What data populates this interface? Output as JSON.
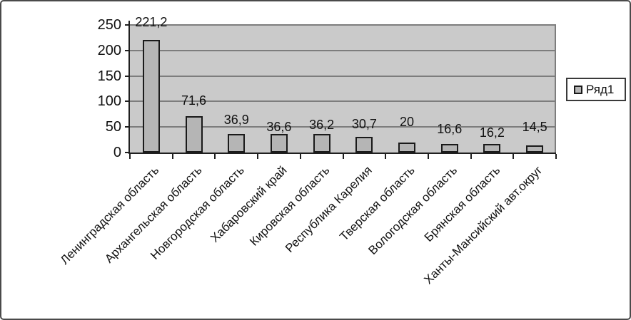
{
  "chart_data": {
    "type": "bar",
    "title": "",
    "categories": [
      "Ленинградская область",
      "Архангельская область",
      "Новгородская область",
      "Хабаровский край",
      "Кировская область",
      "Республика Карелия",
      "Тверская область",
      "Вологодская область",
      "Брянская область",
      "Ханты-Мансийский авт.округ"
    ],
    "series": [
      {
        "name": "Ряд1",
        "values": [
          221.2,
          71.6,
          36.9,
          36.6,
          36.2,
          30.7,
          20,
          16.6,
          16.2,
          14.5
        ]
      }
    ],
    "value_labels": [
      "221,2",
      "71,6",
      "36,9",
      "36,6",
      "36,2",
      "30,7",
      "20",
      "16,6",
      "16,2",
      "14,5"
    ],
    "xlabel": "",
    "ylabel": "",
    "ylim": [
      0,
      250
    ],
    "yticks": [
      0,
      50,
      100,
      150,
      200,
      250
    ],
    "grid": true,
    "legend_position": "right",
    "category_label_rotation_deg": -45,
    "value_label_dy": [
      -3,
      0,
      2,
      12,
      9,
      4,
      -7,
      1,
      6,
      -4
    ],
    "colors": {
      "plot_background": "#cacaca",
      "bar_fill": "#b5b5b5",
      "bar_border": "#1a1a1a",
      "gridline": "#7d7d7d",
      "axis": "#1f1f1f",
      "text": "#111111",
      "figure_background": "#ffffff",
      "figure_border": "#4a4a4a"
    }
  }
}
